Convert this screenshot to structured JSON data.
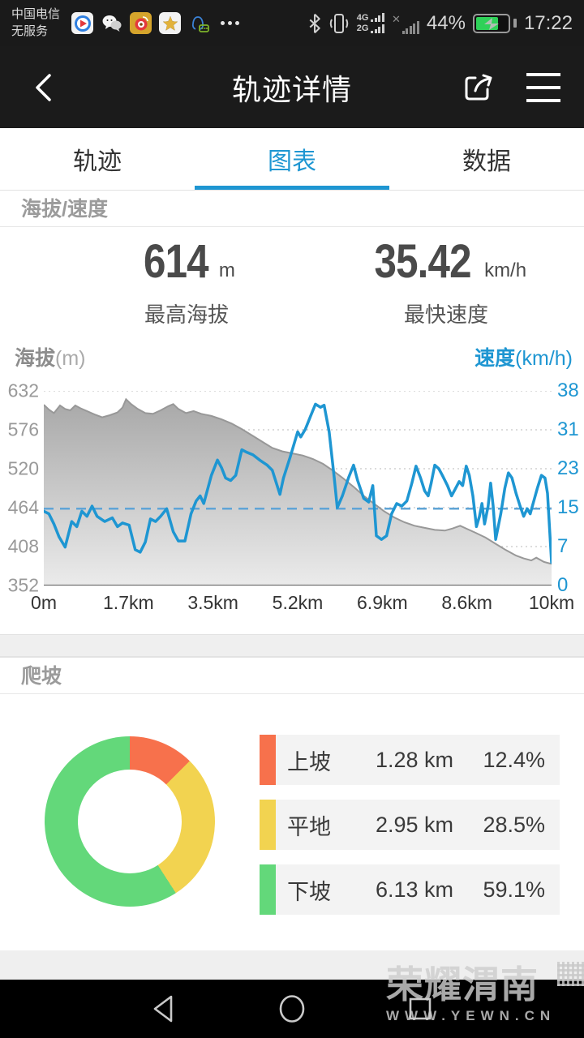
{
  "theme": {
    "accent": "#1E96D2",
    "battery_green": "#2ED158",
    "area_top": "#a8a8a8",
    "area_bottom": "#ebebeb",
    "area_stroke": "#989898",
    "grid": "#b8b8b8",
    "avg_dash": "#5FA4D6"
  },
  "status_bar": {
    "carrier": "中国电信",
    "service_state": "无服务",
    "notification_icons": [
      "video-app-icon",
      "wechat-icon",
      "weibo-icon",
      "star-app-icon",
      "qq-icon",
      "more-notifications-icon"
    ],
    "network_top": "4G",
    "network_bottom": "2G",
    "battery_percent": "44%",
    "time": "17:22"
  },
  "header": {
    "title": "轨迹详情"
  },
  "tabs": [
    {
      "label": "轨迹",
      "active": false
    },
    {
      "label": "图表",
      "active": true
    },
    {
      "label": "数据",
      "active": false
    }
  ],
  "section_headers": {
    "elevation_speed": "海拔/速度",
    "climb": "爬坡"
  },
  "stats": {
    "max_elevation": {
      "value": "614",
      "unit": "m",
      "label": "最高海拔"
    },
    "max_speed": {
      "value": "35.42",
      "unit": "km/h",
      "label": "最快速度"
    }
  },
  "chart_data": [
    {
      "type": "line",
      "title": "海拔/速度",
      "left_axis": {
        "label": "海拔",
        "unit": "(m)",
        "ticks": [
          632,
          576,
          520,
          464,
          408,
          352
        ],
        "range": [
          352,
          632
        ]
      },
      "right_axis": {
        "label": "速度",
        "unit": "(km/h)",
        "ticks": [
          38,
          31,
          23,
          15,
          7,
          0
        ],
        "range": [
          0,
          38
        ]
      },
      "x_axis": {
        "ticks": [
          "0m",
          "1.7km",
          "3.5km",
          "5.2km",
          "6.9km",
          "8.6km",
          "10km"
        ],
        "range_km": [
          0,
          10
        ]
      },
      "average_speed_line": 15,
      "grid": "dotted",
      "series": [
        {
          "name": "海拔",
          "type": "area",
          "axis": "left",
          "points": [
            [
              0,
              612
            ],
            [
              0.1,
              605
            ],
            [
              0.2,
              600
            ],
            [
              0.32,
              611
            ],
            [
              0.42,
              606
            ],
            [
              0.52,
              604
            ],
            [
              0.62,
              611
            ],
            [
              0.72,
              607
            ],
            [
              0.85,
              603
            ],
            [
              1,
              598
            ],
            [
              1.15,
              594
            ],
            [
              1.3,
              597
            ],
            [
              1.45,
              601
            ],
            [
              1.55,
              608
            ],
            [
              1.62,
              620
            ],
            [
              1.72,
              613
            ],
            [
              1.85,
              606
            ],
            [
              2,
              600
            ],
            [
              2.15,
              599
            ],
            [
              2.3,
              604
            ],
            [
              2.45,
              610
            ],
            [
              2.55,
              613
            ],
            [
              2.65,
              606
            ],
            [
              2.8,
              600
            ],
            [
              2.95,
              603
            ],
            [
              3.1,
              599
            ],
            [
              3.3,
              596
            ],
            [
              3.5,
              591
            ],
            [
              3.7,
              585
            ],
            [
              3.9,
              577
            ],
            [
              4.1,
              568
            ],
            [
              4.3,
              559
            ],
            [
              4.5,
              550
            ],
            [
              4.7,
              545
            ],
            [
              4.9,
              542
            ],
            [
              5.1,
              539
            ],
            [
              5.3,
              534
            ],
            [
              5.5,
              527
            ],
            [
              5.7,
              517
            ],
            [
              5.9,
              506
            ],
            [
              6.1,
              494
            ],
            [
              6.3,
              481
            ],
            [
              6.5,
              470
            ],
            [
              6.7,
              459
            ],
            [
              6.9,
              450
            ],
            [
              7.1,
              443
            ],
            [
              7.3,
              438
            ],
            [
              7.5,
              435
            ],
            [
              7.7,
              432
            ],
            [
              7.9,
              431
            ],
            [
              8.05,
              434
            ],
            [
              8.2,
              438
            ],
            [
              8.35,
              433
            ],
            [
              8.5,
              428
            ],
            [
              8.7,
              421
            ],
            [
              8.9,
              412
            ],
            [
              9.1,
              403
            ],
            [
              9.3,
              395
            ],
            [
              9.45,
              391
            ],
            [
              9.6,
              388
            ],
            [
              9.7,
              392
            ],
            [
              9.85,
              386
            ],
            [
              10,
              383
            ]
          ]
        },
        {
          "name": "速度",
          "type": "line",
          "axis": "right",
          "points": [
            [
              0,
              14.5
            ],
            [
              0.1,
              14
            ],
            [
              0.2,
              12
            ],
            [
              0.3,
              9.5
            ],
            [
              0.42,
              7.5
            ],
            [
              0.55,
              12.5
            ],
            [
              0.65,
              11.5
            ],
            [
              0.75,
              14.5
            ],
            [
              0.85,
              13.5
            ],
            [
              0.95,
              15.5
            ],
            [
              1.05,
              13.5
            ],
            [
              1.2,
              12.5
            ],
            [
              1.35,
              13.2
            ],
            [
              1.45,
              11.5
            ],
            [
              1.55,
              12.2
            ],
            [
              1.68,
              11.8
            ],
            [
              1.8,
              7
            ],
            [
              1.9,
              6.5
            ],
            [
              2,
              8.5
            ],
            [
              2.1,
              13
            ],
            [
              2.2,
              12.5
            ],
            [
              2.3,
              13.5
            ],
            [
              2.42,
              15
            ],
            [
              2.55,
              10.5
            ],
            [
              2.65,
              8.7
            ],
            [
              2.78,
              8.7
            ],
            [
              2.9,
              14
            ],
            [
              3,
              16.5
            ],
            [
              3.08,
              17.5
            ],
            [
              3.15,
              16
            ],
            [
              3.3,
              21.5
            ],
            [
              3.42,
              24.5
            ],
            [
              3.5,
              23
            ],
            [
              3.58,
              21
            ],
            [
              3.68,
              20.5
            ],
            [
              3.78,
              21.5
            ],
            [
              3.9,
              26.5
            ],
            [
              4,
              26
            ],
            [
              4.12,
              25.5
            ],
            [
              4.25,
              24.5
            ],
            [
              4.4,
              23.5
            ],
            [
              4.5,
              22.5
            ],
            [
              4.58,
              20
            ],
            [
              4.65,
              17.8
            ],
            [
              4.72,
              21
            ],
            [
              4.85,
              25
            ],
            [
              5,
              30
            ],
            [
              5.06,
              29
            ],
            [
              5.15,
              30.5
            ],
            [
              5.25,
              33
            ],
            [
              5.35,
              35.4
            ],
            [
              5.45,
              34.8
            ],
            [
              5.52,
              35.2
            ],
            [
              5.62,
              30
            ],
            [
              5.72,
              21
            ],
            [
              5.78,
              15.2
            ],
            [
              5.88,
              17.5
            ],
            [
              6,
              21
            ],
            [
              6.1,
              23.5
            ],
            [
              6.18,
              20.5
            ],
            [
              6.3,
              17
            ],
            [
              6.4,
              16.3
            ],
            [
              6.48,
              19.5
            ],
            [
              6.55,
              9.7
            ],
            [
              6.65,
              9
            ],
            [
              6.75,
              9.7
            ],
            [
              6.85,
              14
            ],
            [
              6.95,
              16
            ],
            [
              7.05,
              15.5
            ],
            [
              7.15,
              16.5
            ],
            [
              7.25,
              20
            ],
            [
              7.33,
              23.3
            ],
            [
              7.42,
              21
            ],
            [
              7.5,
              18.5
            ],
            [
              7.57,
              17.5
            ],
            [
              7.63,
              20
            ],
            [
              7.7,
              23.5
            ],
            [
              7.78,
              22.8
            ],
            [
              7.85,
              21.5
            ],
            [
              7.95,
              19.5
            ],
            [
              8.03,
              17.5
            ],
            [
              8.1,
              18.8
            ],
            [
              8.18,
              20.3
            ],
            [
              8.25,
              19.5
            ],
            [
              8.32,
              23.3
            ],
            [
              8.38,
              21.5
            ],
            [
              8.45,
              17.5
            ],
            [
              8.52,
              11.5
            ],
            [
              8.58,
              13.5
            ],
            [
              8.63,
              16
            ],
            [
              8.68,
              12
            ],
            [
              8.75,
              15.5
            ],
            [
              8.8,
              20
            ],
            [
              8.85,
              15.5
            ],
            [
              8.9,
              9
            ],
            [
              9,
              14
            ],
            [
              9.08,
              19
            ],
            [
              9.15,
              22
            ],
            [
              9.22,
              21
            ],
            [
              9.3,
              18
            ],
            [
              9.38,
              15.5
            ],
            [
              9.45,
              13.5
            ],
            [
              9.52,
              15
            ],
            [
              9.58,
              14
            ],
            [
              9.65,
              16.5
            ],
            [
              9.72,
              19
            ],
            [
              9.8,
              21.5
            ],
            [
              9.87,
              21
            ],
            [
              9.92,
              18
            ],
            [
              10,
              4.5
            ]
          ]
        }
      ]
    },
    {
      "type": "pie",
      "title": "爬坡",
      "donut": true,
      "start_angle_deg": 0,
      "segments": [
        {
          "label": "上坡",
          "distance": "1.28 km",
          "percent": "12.4%",
          "value": 12.4,
          "color": "#F7714C"
        },
        {
          "label": "平地",
          "distance": "2.95 km",
          "percent": "28.5%",
          "value": 28.5,
          "color": "#F2D350"
        },
        {
          "label": "下坡",
          "distance": "6.13 km",
          "percent": "59.1%",
          "value": 59.1,
          "color": "#63D87A"
        }
      ]
    }
  ],
  "watermark": {
    "title": "荣耀渭南",
    "url": "WWW.YEWN.CN"
  },
  "nav_bar": [
    "back",
    "home",
    "recents"
  ]
}
